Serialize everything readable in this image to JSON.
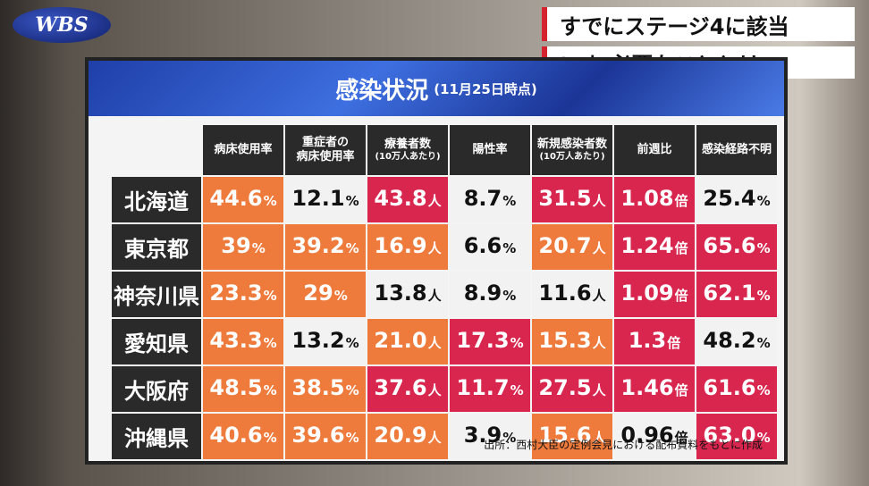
{
  "logo": "WBS",
  "caption": {
    "line1": "すでにステージ4に該当",
    "line2": "いま 必要なこととは"
  },
  "board": {
    "title": "感染状況",
    "subtitle": "(11月25日時点)",
    "headers": [
      [
        "病床使用率"
      ],
      [
        "重症者の",
        "病床使用率"
      ],
      [
        "療養者数",
        "(10万人あたり)"
      ],
      [
        "陽性率"
      ],
      [
        "新規感染者数",
        "(10万人あたり)"
      ],
      [
        "前週比"
      ],
      [
        "感染経路不明"
      ]
    ],
    "rows": [
      {
        "label": "北海道",
        "cells": [
          {
            "value": "44.6",
            "unit": "%",
            "color": "#ee7a3c"
          },
          {
            "value": "12.1",
            "unit": "%",
            "color": "#f2f2f2"
          },
          {
            "value": "43.8",
            "unit": "人",
            "color": "#d9264e"
          },
          {
            "value": "8.7",
            "unit": "%",
            "color": "#f2f2f2"
          },
          {
            "value": "31.5",
            "unit": "人",
            "color": "#d9264e"
          },
          {
            "value": "1.08",
            "unit": "倍",
            "color": "#d9264e"
          },
          {
            "value": "25.4",
            "unit": "%",
            "color": "#f2f2f2"
          }
        ]
      },
      {
        "label": "東京都",
        "cells": [
          {
            "value": "39",
            "unit": "%",
            "color": "#ee7a3c"
          },
          {
            "value": "39.2",
            "unit": "%",
            "color": "#ee7a3c"
          },
          {
            "value": "16.9",
            "unit": "人",
            "color": "#ee7a3c"
          },
          {
            "value": "6.6",
            "unit": "%",
            "color": "#f2f2f2"
          },
          {
            "value": "20.7",
            "unit": "人",
            "color": "#ee7a3c"
          },
          {
            "value": "1.24",
            "unit": "倍",
            "color": "#d9264e"
          },
          {
            "value": "65.6",
            "unit": "%",
            "color": "#d9264e"
          }
        ]
      },
      {
        "label": "神奈川県",
        "cells": [
          {
            "value": "23.3",
            "unit": "%",
            "color": "#ee7a3c"
          },
          {
            "value": "29",
            "unit": "%",
            "color": "#ee7a3c"
          },
          {
            "value": "13.8",
            "unit": "人",
            "color": "#f2f2f2"
          },
          {
            "value": "8.9",
            "unit": "%",
            "color": "#f2f2f2"
          },
          {
            "value": "11.6",
            "unit": "人",
            "color": "#f2f2f2"
          },
          {
            "value": "1.09",
            "unit": "倍",
            "color": "#d9264e"
          },
          {
            "value": "62.1",
            "unit": "%",
            "color": "#d9264e"
          }
        ]
      },
      {
        "label": "愛知県",
        "cells": [
          {
            "value": "43.3",
            "unit": "%",
            "color": "#ee7a3c"
          },
          {
            "value": "13.2",
            "unit": "%",
            "color": "#f2f2f2"
          },
          {
            "value": "21.0",
            "unit": "人",
            "color": "#ee7a3c"
          },
          {
            "value": "17.3",
            "unit": "%",
            "color": "#d9264e"
          },
          {
            "value": "15.3",
            "unit": "人",
            "color": "#ee7a3c"
          },
          {
            "value": "1.3",
            "unit": "倍",
            "color": "#d9264e"
          },
          {
            "value": "48.2",
            "unit": "%",
            "color": "#f2f2f2"
          }
        ]
      },
      {
        "label": "大阪府",
        "cells": [
          {
            "value": "48.5",
            "unit": "%",
            "color": "#ee7a3c"
          },
          {
            "value": "38.5",
            "unit": "%",
            "color": "#ee7a3c"
          },
          {
            "value": "37.6",
            "unit": "人",
            "color": "#d9264e"
          },
          {
            "value": "11.7",
            "unit": "%",
            "color": "#d9264e"
          },
          {
            "value": "27.5",
            "unit": "人",
            "color": "#d9264e"
          },
          {
            "value": "1.46",
            "unit": "倍",
            "color": "#d9264e"
          },
          {
            "value": "61.6",
            "unit": "%",
            "color": "#d9264e"
          }
        ]
      },
      {
        "label": "沖縄県",
        "cells": [
          {
            "value": "40.6",
            "unit": "%",
            "color": "#ee7a3c"
          },
          {
            "value": "39.6",
            "unit": "%",
            "color": "#ee7a3c"
          },
          {
            "value": "20.9",
            "unit": "人",
            "color": "#ee7a3c"
          },
          {
            "value": "3.9",
            "unit": "%",
            "color": "#f2f2f2"
          },
          {
            "value": "15.6",
            "unit": "人",
            "color": "#ee7a3c"
          },
          {
            "value": "0.96",
            "unit": "倍",
            "color": "#f2f2f2"
          },
          {
            "value": "63.0",
            "unit": "%",
            "color": "#d9264e"
          }
        ]
      }
    ],
    "source": "出所：西村大臣の定例会見における配布資料をもとに作成"
  }
}
